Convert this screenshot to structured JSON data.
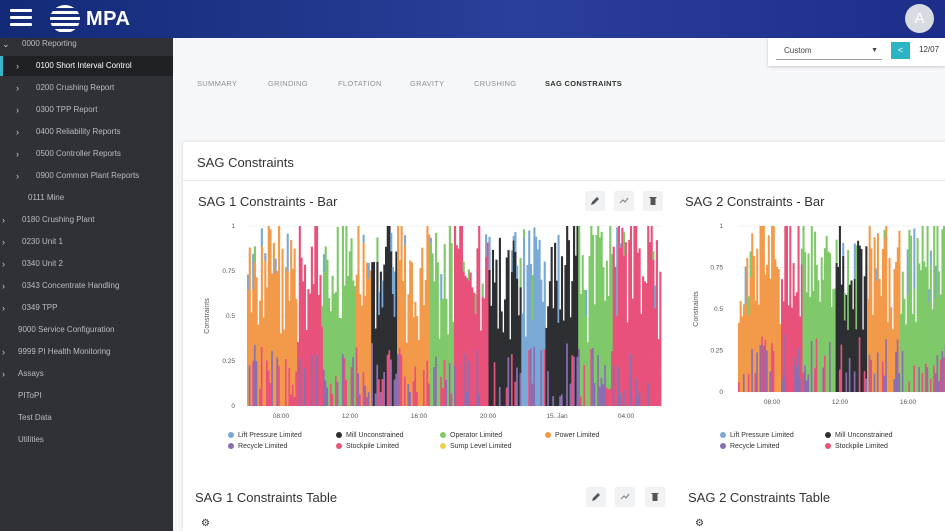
{
  "header": {
    "app_name": "MPA",
    "avatar_initial": "A"
  },
  "sidebar": {
    "items": [
      {
        "label": "0000 Reporting",
        "chevron": "down"
      },
      {
        "label": "0100 Short Interval Control",
        "chevron": "right",
        "active": true
      },
      {
        "label": "0200 Crushing Report",
        "chevron": "right"
      },
      {
        "label": "0300 TPP Report",
        "chevron": "right"
      },
      {
        "label": "0400 Reliability Reports",
        "chevron": "right"
      },
      {
        "label": "0500 Controller Reports",
        "chevron": "right"
      },
      {
        "label": "0900 Common Plant Reports",
        "chevron": "right"
      },
      {
        "label": "0111 Mine",
        "chevron": ""
      },
      {
        "label": "0180 Crushing Plant",
        "chevron": "right"
      },
      {
        "label": "0230 Unit 1",
        "chevron": "right"
      },
      {
        "label": "0340 Unit 2",
        "chevron": "right"
      },
      {
        "label": "0343 Concentrate Handling",
        "chevron": "right"
      },
      {
        "label": "0349 TPP",
        "chevron": "right"
      },
      {
        "label": "9000 Service Configuration",
        "chevron": ""
      },
      {
        "label": "9999 PI Health Monitoring",
        "chevron": "right"
      },
      {
        "label": "Assays",
        "chevron": "right"
      },
      {
        "label": "PIToPI",
        "chevron": ""
      },
      {
        "label": "Test Data",
        "chevron": ""
      },
      {
        "label": "Utilities",
        "chevron": ""
      }
    ]
  },
  "toolbar": {
    "range_select": "Custom",
    "date_prefix": "12/07"
  },
  "tabs": [
    "SUMMARY",
    "GRINDING",
    "FLOTATION",
    "GRAVITY",
    "CRUSHING",
    "SAG CONSTRAINTS"
  ],
  "panel": {
    "title": "SAG Constraints"
  },
  "cards": {
    "sag1_bar": "SAG 1 Constraints - Bar",
    "sag2_bar": "SAG 2 Constraints - Bar",
    "sag1_table": "SAG 1 Constraints Table",
    "sag2_table": "SAG 2 Constraints Table"
  },
  "icons": {
    "edit": "pencil-icon",
    "trend": "trend-icon",
    "delete": "trash-icon",
    "settings": "gear-icon"
  },
  "colors": {
    "lift_pressure": "#7aa9d6",
    "mill_unconstrained": "#2d2f33",
    "operator": "#7fc96a",
    "power": "#f39a4a",
    "recycle": "#8a6fb0",
    "stockpile": "#e8527a",
    "sump_level": "#e8d34a",
    "accent": "#2bb5c4"
  },
  "chart_data": [
    {
      "type": "bar",
      "title": "SAG 1 Constraints - Bar",
      "ylabel": "Constraints",
      "ylim": [
        0,
        1
      ],
      "yticks": [
        "0",
        "0.25",
        "0.5",
        "0.75",
        "1"
      ],
      "xticks": [
        "08:00",
        "12:00",
        "16:00",
        "20:00",
        "15. Jan",
        "04:00"
      ],
      "stacked": true,
      "legend": [
        "Lift Pressure Limited",
        "Mill Unconstrained",
        "Operator Limited",
        "Power Limited",
        "Recycle Limited",
        "Stockpile Limited",
        "Sump Level Limited"
      ],
      "segments": [
        {
          "from": 0.0,
          "to": 0.12,
          "series": "Power Limited"
        },
        {
          "from": 0.12,
          "to": 0.18,
          "series": "Stockpile Limited"
        },
        {
          "from": 0.18,
          "to": 0.26,
          "series": "Operator Limited"
        },
        {
          "from": 0.26,
          "to": 0.3,
          "series": "Power Limited"
        },
        {
          "from": 0.3,
          "to": 0.36,
          "series": "Mill Unconstrained"
        },
        {
          "from": 0.36,
          "to": 0.44,
          "series": "Power Limited"
        },
        {
          "from": 0.44,
          "to": 0.5,
          "series": "Operator Limited"
        },
        {
          "from": 0.5,
          "to": 0.58,
          "series": "Stockpile Limited"
        },
        {
          "from": 0.58,
          "to": 0.66,
          "series": "Mill Unconstrained"
        },
        {
          "from": 0.66,
          "to": 0.72,
          "series": "Lift Pressure Limited"
        },
        {
          "from": 0.72,
          "to": 0.8,
          "series": "Mill Unconstrained"
        },
        {
          "from": 0.8,
          "to": 0.88,
          "series": "Operator Limited"
        },
        {
          "from": 0.88,
          "to": 1.0,
          "series": "Stockpile Limited"
        }
      ]
    },
    {
      "type": "bar",
      "title": "SAG 2 Constraints - Bar",
      "ylabel": "Constraints",
      "ylim": [
        0,
        1
      ],
      "yticks": [
        "0",
        "0.25",
        "0.5",
        "0.75",
        "1"
      ],
      "xticks": [
        "08:00",
        "12:00",
        "16:00"
      ],
      "stacked": true,
      "legend": [
        "Lift Pressure Limited",
        "Mill Unconstrained",
        "Recycle Limited",
        "Stockpile Limited"
      ],
      "segments": [
        {
          "from": 0.0,
          "to": 0.2,
          "series": "Power Limited"
        },
        {
          "from": 0.2,
          "to": 0.3,
          "series": "Stockpile Limited"
        },
        {
          "from": 0.3,
          "to": 0.45,
          "series": "Operator Limited"
        },
        {
          "from": 0.45,
          "to": 0.6,
          "series": "Mill Unconstrained"
        },
        {
          "from": 0.6,
          "to": 0.75,
          "series": "Power Limited"
        },
        {
          "from": 0.75,
          "to": 1.0,
          "series": "Operator Limited"
        }
      ]
    }
  ]
}
